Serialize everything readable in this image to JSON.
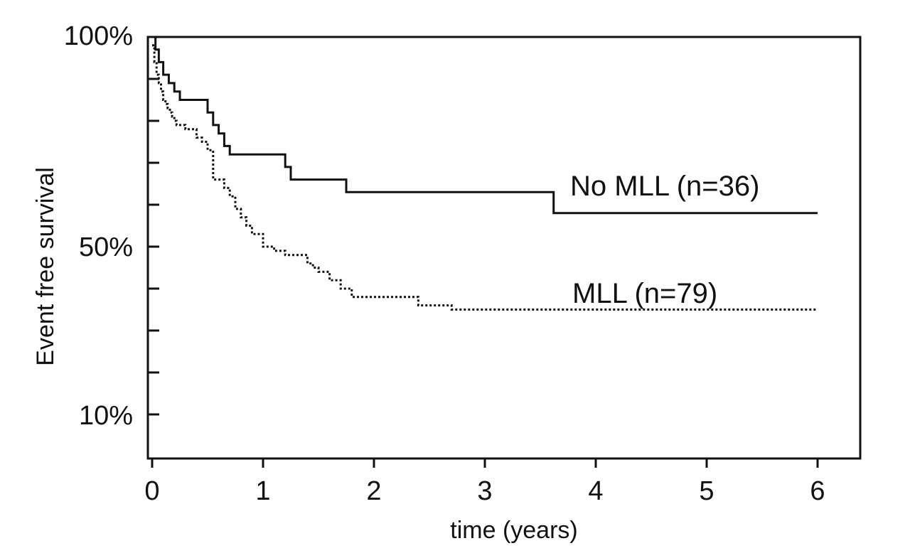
{
  "chart_data": {
    "type": "line",
    "subtype": "kaplan-meier step",
    "title": "",
    "xlabel": "time (years)",
    "ylabel": "Event free survival",
    "xlim": [
      0,
      6
    ],
    "x_ticks": [
      0,
      1,
      2,
      3,
      4,
      5,
      6
    ],
    "x_tick_labels": [
      "0",
      "1",
      "2",
      "3",
      "4",
      "5",
      "6"
    ],
    "ylim": [
      0,
      100
    ],
    "y_minor_ticks": [
      10,
      20,
      30,
      40,
      50,
      60,
      70,
      80,
      90,
      100
    ],
    "y_tick_labels": [
      {
        "value": 100,
        "label": "100%"
      },
      {
        "value": 50,
        "label": "50%"
      },
      {
        "value": 10,
        "label": "10%"
      }
    ],
    "grid": false,
    "series": [
      {
        "name": "No MLL (n=36)",
        "style": "solid",
        "color": "#111111",
        "x": [
          0,
          0.03,
          0.06,
          0.1,
          0.15,
          0.2,
          0.25,
          0.5,
          0.55,
          0.6,
          0.65,
          0.7,
          1.2,
          1.25,
          1.75,
          3.62,
          6.0
        ],
        "y": [
          100,
          97,
          94,
          91,
          89,
          87,
          85,
          82,
          79,
          77,
          74,
          72,
          69,
          66,
          63,
          58,
          58
        ]
      },
      {
        "name": "MLL (n=79)",
        "style": "dotted",
        "color": "#111111",
        "x": [
          0,
          0.02,
          0.04,
          0.06,
          0.08,
          0.1,
          0.12,
          0.14,
          0.16,
          0.18,
          0.2,
          0.22,
          0.3,
          0.4,
          0.45,
          0.5,
          0.55,
          0.65,
          0.7,
          0.75,
          0.8,
          0.85,
          0.9,
          1.0,
          1.1,
          1.2,
          1.4,
          1.45,
          1.5,
          1.6,
          1.7,
          1.8,
          2.0,
          2.4,
          2.7,
          6.0
        ],
        "y": [
          98,
          94,
          91,
          89,
          87,
          85,
          84,
          83,
          82,
          81,
          80,
          79,
          78,
          76,
          75,
          73,
          66,
          64,
          62,
          59,
          57,
          55,
          53,
          50,
          49,
          48,
          46,
          45,
          44,
          42,
          40,
          38,
          38,
          36,
          35,
          35
        ]
      }
    ],
    "annotations": [
      {
        "text": "No MLL (n=36)",
        "series": 0
      },
      {
        "text": "MLL (n=79)",
        "series": 1
      }
    ]
  }
}
